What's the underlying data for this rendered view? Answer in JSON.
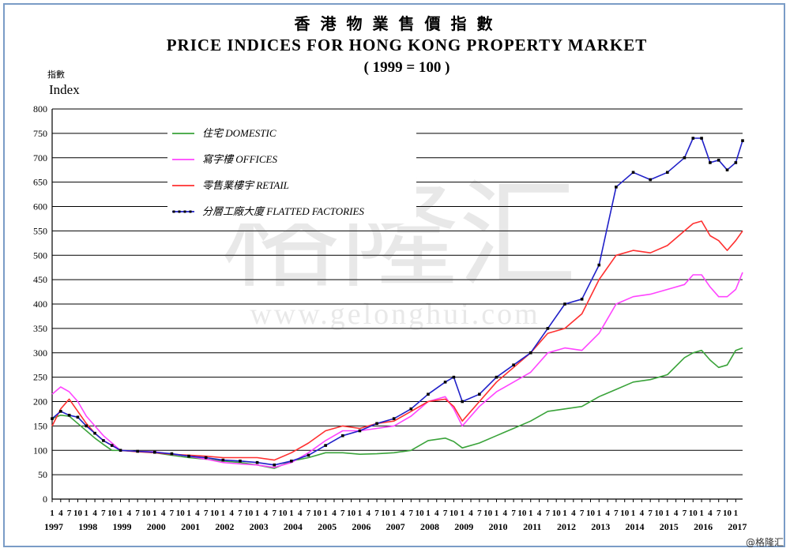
{
  "chart_data": {
    "type": "line",
    "title_zh": "香 港 物 業 售 價 指 數",
    "title": "PRICE INDICES FOR HONG KONG PROPERTY MARKET",
    "subtitle": "( 1999 = 100 )",
    "ylabel_zh": "指數",
    "ylabel": "Index",
    "ylim": [
      0,
      800
    ],
    "yticks": [
      "0",
      "50",
      "100",
      "150",
      "200",
      "250",
      "300",
      "350",
      "400",
      "450",
      "500",
      "550",
      "600",
      "650",
      "700",
      "750",
      "800"
    ],
    "xlim": [
      1997.0,
      2017.2
    ],
    "years": [
      "1997",
      "1998",
      "1999",
      "2000",
      "2001",
      "2002",
      "2003",
      "2004",
      "2005",
      "2006",
      "2007",
      "2008",
      "2009",
      "2010",
      "2011",
      "2012",
      "2013",
      "2014",
      "2015",
      "2016",
      "2017"
    ],
    "quarter_labels": [
      "1",
      "4",
      "7",
      "10",
      "1"
    ],
    "grid": "horizontal",
    "legend_position": "top-left",
    "series": [
      {
        "name": "住宅 DOMESTIC",
        "color": "#3aa33a",
        "marker": "none",
        "x": [
          1997.0,
          1997.25,
          1997.5,
          1997.75,
          1998.0,
          1998.25,
          1998.5,
          1998.75,
          1999.0,
          1999.5,
          2000.0,
          2000.5,
          2001.0,
          2001.5,
          2002.0,
          2002.5,
          2003.0,
          2003.5,
          2004.0,
          2004.5,
          2005.0,
          2005.5,
          2006.0,
          2006.5,
          2007.0,
          2007.5,
          2008.0,
          2008.5,
          2008.75,
          2009.0,
          2009.5,
          2010.0,
          2010.5,
          2011.0,
          2011.5,
          2012.0,
          2012.5,
          2013.0,
          2013.5,
          2014.0,
          2014.5,
          2015.0,
          2015.5,
          2015.75,
          2016.0,
          2016.25,
          2016.5,
          2016.75,
          2017.0,
          2017.2
        ],
        "values": [
          165,
          172,
          170,
          155,
          140,
          125,
          112,
          100,
          100,
          98,
          95,
          90,
          85,
          82,
          78,
          75,
          70,
          63,
          78,
          85,
          95,
          95,
          92,
          93,
          95,
          100,
          120,
          125,
          118,
          105,
          115,
          130,
          145,
          160,
          180,
          185,
          190,
          210,
          225,
          240,
          245,
          255,
          290,
          300,
          305,
          285,
          270,
          275,
          305,
          310
        ]
      },
      {
        "name": "寫字樓 OFFICES",
        "color": "#ff44ff",
        "marker": "none",
        "x": [
          1997.0,
          1997.25,
          1997.5,
          1997.75,
          1998.0,
          1998.25,
          1998.5,
          1998.75,
          1999.0,
          1999.5,
          2000.0,
          2000.5,
          2001.0,
          2001.5,
          2002.0,
          2002.5,
          2003.0,
          2003.5,
          2004.0,
          2004.5,
          2005.0,
          2005.5,
          2006.0,
          2006.5,
          2007.0,
          2007.5,
          2008.0,
          2008.5,
          2008.75,
          2009.0,
          2009.5,
          2010.0,
          2010.5,
          2011.0,
          2011.5,
          2012.0,
          2012.5,
          2013.0,
          2013.5,
          2014.0,
          2014.5,
          2015.0,
          2015.5,
          2015.75,
          2016.0,
          2016.25,
          2016.5,
          2016.75,
          2017.0,
          2017.2
        ],
        "values": [
          215,
          230,
          220,
          200,
          170,
          150,
          130,
          115,
          100,
          98,
          97,
          92,
          88,
          82,
          75,
          72,
          70,
          65,
          75,
          95,
          120,
          140,
          140,
          145,
          150,
          170,
          200,
          210,
          185,
          150,
          190,
          220,
          240,
          260,
          300,
          310,
          305,
          340,
          400,
          415,
          420,
          430,
          440,
          460,
          460,
          435,
          415,
          415,
          430,
          465
        ]
      },
      {
        "name": "零售業樓宇 RETAIL",
        "color": "#ff3030",
        "marker": "none",
        "x": [
          1997.0,
          1997.25,
          1997.5,
          1997.75,
          1998.0,
          1998.25,
          1998.5,
          1998.75,
          1999.0,
          1999.5,
          2000.0,
          2000.5,
          2001.0,
          2001.5,
          2002.0,
          2002.5,
          2003.0,
          2003.5,
          2004.0,
          2004.5,
          2005.0,
          2005.5,
          2006.0,
          2006.5,
          2007.0,
          2007.5,
          2008.0,
          2008.5,
          2008.75,
          2009.0,
          2009.5,
          2010.0,
          2010.5,
          2011.0,
          2011.5,
          2012.0,
          2012.5,
          2013.0,
          2013.5,
          2014.0,
          2014.5,
          2015.0,
          2015.5,
          2015.75,
          2016.0,
          2016.25,
          2016.5,
          2016.75,
          2017.0,
          2017.2
        ],
        "values": [
          150,
          185,
          205,
          180,
          155,
          135,
          120,
          110,
          100,
          97,
          95,
          92,
          90,
          88,
          85,
          85,
          85,
          80,
          95,
          115,
          140,
          150,
          145,
          155,
          160,
          180,
          200,
          205,
          190,
          160,
          200,
          240,
          270,
          300,
          340,
          350,
          380,
          450,
          500,
          510,
          505,
          520,
          550,
          565,
          570,
          540,
          530,
          510,
          530,
          550
        ]
      },
      {
        "name": "分層工廠大廈 FLATTED FACTORIES",
        "color": "#2020c8",
        "marker": "dot",
        "x": [
          1997.0,
          1997.25,
          1997.5,
          1997.75,
          1998.0,
          1998.25,
          1998.5,
          1998.75,
          1999.0,
          1999.5,
          2000.0,
          2000.5,
          2001.0,
          2001.5,
          2002.0,
          2002.5,
          2003.0,
          2003.5,
          2004.0,
          2004.5,
          2005.0,
          2005.5,
          2006.0,
          2006.5,
          2007.0,
          2007.5,
          2008.0,
          2008.5,
          2008.75,
          2009.0,
          2009.5,
          2010.0,
          2010.5,
          2011.0,
          2011.5,
          2012.0,
          2012.5,
          2013.0,
          2013.5,
          2014.0,
          2014.5,
          2015.0,
          2015.5,
          2015.75,
          2016.0,
          2016.25,
          2016.5,
          2016.75,
          2017.0,
          2017.2
        ],
        "values": [
          165,
          180,
          172,
          168,
          150,
          135,
          120,
          110,
          100,
          98,
          96,
          93,
          88,
          85,
          80,
          78,
          75,
          70,
          78,
          90,
          110,
          130,
          140,
          155,
          165,
          185,
          215,
          240,
          250,
          200,
          215,
          250,
          275,
          300,
          350,
          400,
          410,
          480,
          640,
          670,
          655,
          670,
          700,
          740,
          740,
          690,
          695,
          675,
          690,
          735
        ]
      }
    ]
  },
  "watermark": {
    "text": "www.gelonghui.com",
    "name": "格隆汇"
  },
  "footer_mark": "@格隆汇"
}
